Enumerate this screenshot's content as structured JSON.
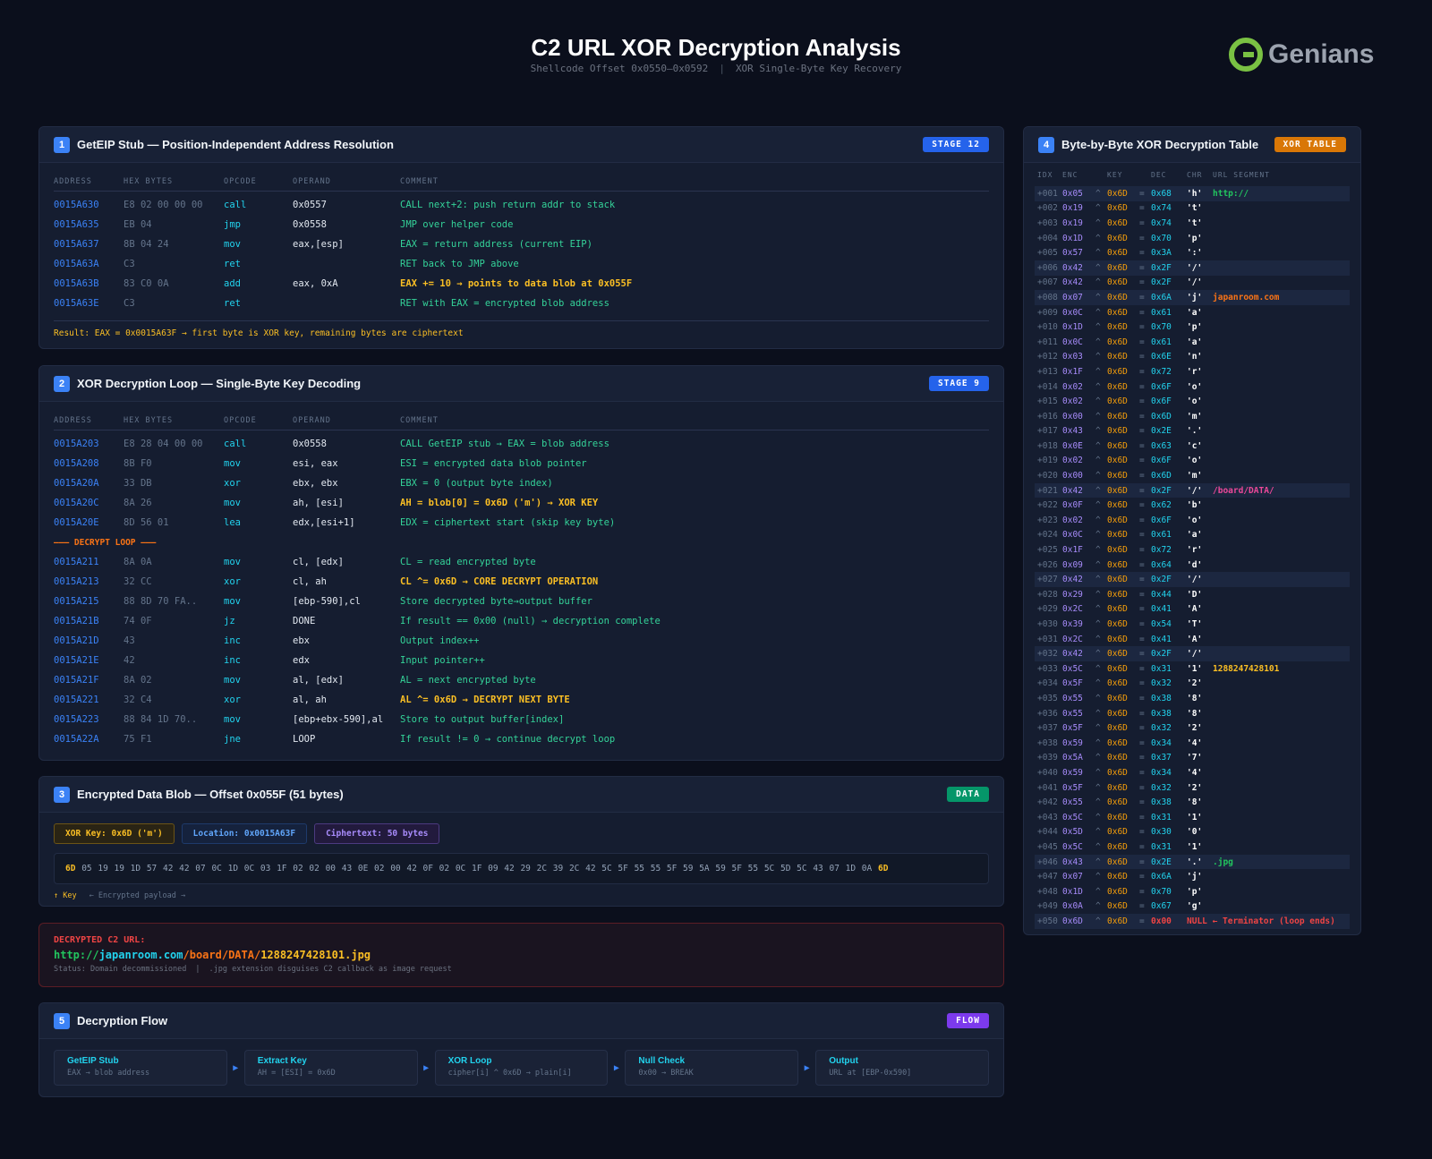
{
  "header": {
    "title": "C2 URL XOR Decryption Analysis",
    "subtitle_left": "Shellcode Offset 0x0550–0x0592",
    "subtitle_right": "XOR Single-Byte Key Recovery",
    "logo_text": "Genians"
  },
  "columns": {
    "address": "ADDRESS",
    "hex": "HEX BYTES",
    "opcode": "OPCODE",
    "operand": "OPERAND",
    "comment": "COMMENT"
  },
  "stage1": {
    "num": "1",
    "title": "GetEIP Stub — Position-Independent Address Resolution",
    "badge": "STAGE 12",
    "badge_color": "#2563eb",
    "rows": [
      {
        "addr": "0015A630",
        "hex": "E8 02 00 00 00",
        "op": "call",
        "operand": "0x0557",
        "comment": "CALL next+2: push return addr to stack"
      },
      {
        "addr": "0015A635",
        "hex": "EB 04",
        "op": "jmp",
        "operand": "0x0558",
        "comment": "JMP over helper code"
      },
      {
        "addr": "0015A637",
        "hex": "8B 04 24",
        "op": "mov",
        "operand": "eax,[esp]",
        "comment": "EAX = return address (current EIP)"
      },
      {
        "addr": "0015A63A",
        "hex": "C3",
        "op": "ret",
        "operand": "",
        "comment": "RET back to JMP above"
      },
      {
        "addr": "0015A63B",
        "hex": "83 C0 0A",
        "op": "add",
        "operand": "eax, 0xA",
        "comment": "EAX += 10 → points to data blob at 0x055F",
        "hl": true
      },
      {
        "addr": "0015A63E",
        "hex": "C3",
        "op": "ret",
        "operand": "",
        "comment": "RET with EAX = encrypted blob address"
      }
    ],
    "result": "Result: EAX = 0x0015A63F → first byte is XOR key, remaining bytes are ciphertext"
  },
  "stage2": {
    "num": "2",
    "title": "XOR Decryption Loop — Single-Byte Key Decoding",
    "badge": "STAGE 9",
    "badge_color": "#2563eb",
    "loop_label": "——— DECRYPT LOOP ———",
    "rows_pre": [
      {
        "addr": "0015A203",
        "hex": "E8 28 04 00 00",
        "op": "call",
        "operand": "0x0558",
        "comment": "CALL GetEIP stub → EAX = blob address"
      },
      {
        "addr": "0015A208",
        "hex": "8B F0",
        "op": "mov",
        "operand": "esi, eax",
        "comment": "ESI = encrypted data blob pointer"
      },
      {
        "addr": "0015A20A",
        "hex": "33 DB",
        "op": "xor",
        "operand": "ebx, ebx",
        "comment": "EBX = 0 (output byte index)"
      },
      {
        "addr": "0015A20C",
        "hex": "8A 26",
        "op": "mov",
        "operand": "ah, [esi]",
        "comment": "AH = blob[0] = 0x6D ('m') → XOR KEY",
        "hl": true
      },
      {
        "addr": "0015A20E",
        "hex": "8D 56 01",
        "op": "lea",
        "operand": "edx,[esi+1]",
        "comment": "EDX = ciphertext start (skip key byte)"
      }
    ],
    "rows_loop": [
      {
        "addr": "0015A211",
        "hex": "8A 0A",
        "op": "mov",
        "operand": "cl, [edx]",
        "comment": "CL = read encrypted byte"
      },
      {
        "addr": "0015A213",
        "hex": "32 CC",
        "op": "xor",
        "operand": "cl, ah",
        "comment": "CL ^= 0x6D → CORE DECRYPT OPERATION",
        "hl": true
      },
      {
        "addr": "0015A215",
        "hex": "88 8D 70 FA..",
        "op": "mov",
        "operand": "[ebp-590],cl",
        "comment": "Store decrypted byte→output buffer"
      },
      {
        "addr": "0015A21B",
        "hex": "74 0F",
        "op": "jz",
        "operand": "DONE",
        "comment": "If result == 0x00 (null) → decryption complete"
      },
      {
        "addr": "0015A21D",
        "hex": "43",
        "op": "inc",
        "operand": "ebx",
        "comment": "Output index++"
      },
      {
        "addr": "0015A21E",
        "hex": "42",
        "op": "inc",
        "operand": "edx",
        "comment": "Input pointer++"
      },
      {
        "addr": "0015A21F",
        "hex": "8A 02",
        "op": "mov",
        "operand": "al, [edx]",
        "comment": "AL = next encrypted byte"
      },
      {
        "addr": "0015A221",
        "hex": "32 C4",
        "op": "xor",
        "operand": "al, ah",
        "comment": "AL ^= 0x6D → DECRYPT NEXT BYTE",
        "hl": true
      },
      {
        "addr": "0015A223",
        "hex": "88 84 1D 70..",
        "op": "mov",
        "operand": "[ebp+ebx-590],al",
        "comment": "Store to output buffer[index]"
      },
      {
        "addr": "0015A22A",
        "hex": "75 F1",
        "op": "jne",
        "operand": "LOOP",
        "comment": "If result != 0 → continue decrypt loop"
      }
    ]
  },
  "stage3": {
    "num": "3",
    "title": "Encrypted Data Blob — Offset 0x055F (51 bytes)",
    "badge": "DATA",
    "badge_color": "#059669",
    "chips": [
      {
        "label": "XOR Key: 0x6D ('m')",
        "color": "#fbbf24"
      },
      {
        "label": "Location: 0x0015A63F",
        "color": "#60a5fa"
      },
      {
        "label": "Ciphertext: 50 bytes",
        "color": "#a78bfa"
      }
    ],
    "key_byte": "6D",
    "payload": "05 19 19 1D 57 42 42 07 0C 1D 0C 03 1F 02 02 00 43 0E 02 00 42 0F 02 0C 1F 09 42 29 2C 39 2C 42 5C 5F 55 55 5F 59 5A 59 5F 55 5C 5D 5C 43 07 1D 0A",
    "end_byte": "6D",
    "note_key": "↑ Key",
    "note_payload": "← Encrypted payload →"
  },
  "decrypted": {
    "label": "DECRYPTED C2 URL:",
    "parts": [
      {
        "text": "http://",
        "color": "#22c55e"
      },
      {
        "text": "japanroom.com",
        "color": "#22d3ee"
      },
      {
        "text": "/board/DATA/",
        "color": "#f97316"
      },
      {
        "text": "1288247428101",
        "color": "#fbbf24"
      },
      {
        "text": ".jpg",
        "color": "#fbbf24"
      }
    ],
    "status": "Status: Domain decommissioned",
    "note": ".jpg extension disguises C2 callback as image request"
  },
  "stage5": {
    "num": "5",
    "title": "Decryption Flow",
    "badge": "FLOW",
    "badge_color": "#7c3aed",
    "steps": [
      {
        "title": "GetEIP Stub",
        "desc": "EAX → blob address"
      },
      {
        "title": "Extract Key",
        "desc": "AH = [ESI] = 0x6D"
      },
      {
        "title": "XOR Loop",
        "desc": "cipher[i] ^ 0x6D → plain[i]"
      },
      {
        "title": "Null Check",
        "desc": "0x00 → BREAK"
      },
      {
        "title": "Output",
        "desc": "URL at [EBP-0x590]"
      }
    ]
  },
  "stage4": {
    "num": "4",
    "title": "Byte-by-Byte XOR Decryption Table",
    "badge": "XOR TABLE",
    "badge_color": "#d97706",
    "headers": [
      "IDX",
      "ENC",
      "KEY",
      "DEC",
      "CHR",
      "URL SEGMENT"
    ],
    "key": "0x6D",
    "segment_colors": {
      "http://": "#22c55e",
      "japanroom.com": "#f97316",
      "/board/DATA/": "#ec4899",
      "1288247428101": "#fbbf24",
      ".jpg": "#22c55e"
    },
    "rows": [
      [
        "+001",
        "0x05",
        "0x68",
        "'h'",
        "http://",
        1
      ],
      [
        "+002",
        "0x19",
        "0x74",
        "'t'",
        "",
        0
      ],
      [
        "+003",
        "0x19",
        "0x74",
        "'t'",
        "",
        0
      ],
      [
        "+004",
        "0x1D",
        "0x70",
        "'p'",
        "",
        0
      ],
      [
        "+005",
        "0x57",
        "0x3A",
        "':'",
        "",
        0
      ],
      [
        "+006",
        "0x42",
        "0x2F",
        "'/'",
        "",
        1
      ],
      [
        "+007",
        "0x42",
        "0x2F",
        "'/'",
        "",
        0
      ],
      [
        "+008",
        "0x07",
        "0x6A",
        "'j'",
        "japanroom.com",
        1
      ],
      [
        "+009",
        "0x0C",
        "0x61",
        "'a'",
        "",
        0
      ],
      [
        "+010",
        "0x1D",
        "0x70",
        "'p'",
        "",
        0
      ],
      [
        "+011",
        "0x0C",
        "0x61",
        "'a'",
        "",
        0
      ],
      [
        "+012",
        "0x03",
        "0x6E",
        "'n'",
        "",
        0
      ],
      [
        "+013",
        "0x1F",
        "0x72",
        "'r'",
        "",
        0
      ],
      [
        "+014",
        "0x02",
        "0x6F",
        "'o'",
        "",
        0
      ],
      [
        "+015",
        "0x02",
        "0x6F",
        "'o'",
        "",
        0
      ],
      [
        "+016",
        "0x00",
        "0x6D",
        "'m'",
        "",
        0
      ],
      [
        "+017",
        "0x43",
        "0x2E",
        "'.'",
        "",
        0
      ],
      [
        "+018",
        "0x0E",
        "0x63",
        "'c'",
        "",
        0
      ],
      [
        "+019",
        "0x02",
        "0x6F",
        "'o'",
        "",
        0
      ],
      [
        "+020",
        "0x00",
        "0x6D",
        "'m'",
        "",
        0
      ],
      [
        "+021",
        "0x42",
        "0x2F",
        "'/'",
        "/board/DATA/",
        1
      ],
      [
        "+022",
        "0x0F",
        "0x62",
        "'b'",
        "",
        0
      ],
      [
        "+023",
        "0x02",
        "0x6F",
        "'o'",
        "",
        0
      ],
      [
        "+024",
        "0x0C",
        "0x61",
        "'a'",
        "",
        0
      ],
      [
        "+025",
        "0x1F",
        "0x72",
        "'r'",
        "",
        0
      ],
      [
        "+026",
        "0x09",
        "0x64",
        "'d'",
        "",
        0
      ],
      [
        "+027",
        "0x42",
        "0x2F",
        "'/'",
        "",
        1
      ],
      [
        "+028",
        "0x29",
        "0x44",
        "'D'",
        "",
        0
      ],
      [
        "+029",
        "0x2C",
        "0x41",
        "'A'",
        "",
        0
      ],
      [
        "+030",
        "0x39",
        "0x54",
        "'T'",
        "",
        0
      ],
      [
        "+031",
        "0x2C",
        "0x41",
        "'A'",
        "",
        0
      ],
      [
        "+032",
        "0x42",
        "0x2F",
        "'/'",
        "",
        1
      ],
      [
        "+033",
        "0x5C",
        "0x31",
        "'1'",
        "1288247428101",
        0
      ],
      [
        "+034",
        "0x5F",
        "0x32",
        "'2'",
        "",
        0
      ],
      [
        "+035",
        "0x55",
        "0x38",
        "'8'",
        "",
        0
      ],
      [
        "+036",
        "0x55",
        "0x38",
        "'8'",
        "",
        0
      ],
      [
        "+037",
        "0x5F",
        "0x32",
        "'2'",
        "",
        0
      ],
      [
        "+038",
        "0x59",
        "0x34",
        "'4'",
        "",
        0
      ],
      [
        "+039",
        "0x5A",
        "0x37",
        "'7'",
        "",
        0
      ],
      [
        "+040",
        "0x59",
        "0x34",
        "'4'",
        "",
        0
      ],
      [
        "+041",
        "0x5F",
        "0x32",
        "'2'",
        "",
        0
      ],
      [
        "+042",
        "0x55",
        "0x38",
        "'8'",
        "",
        0
      ],
      [
        "+043",
        "0x5C",
        "0x31",
        "'1'",
        "",
        0
      ],
      [
        "+044",
        "0x5D",
        "0x30",
        "'0'",
        "",
        0
      ],
      [
        "+045",
        "0x5C",
        "0x31",
        "'1'",
        "",
        0
      ],
      [
        "+046",
        "0x43",
        "0x2E",
        "'.'",
        ".jpg",
        1
      ],
      [
        "+047",
        "0x07",
        "0x6A",
        "'j'",
        "",
        0
      ],
      [
        "+048",
        "0x1D",
        "0x70",
        "'p'",
        "",
        0
      ],
      [
        "+049",
        "0x0A",
        "0x67",
        "'g'",
        "",
        0
      ]
    ],
    "null_row": {
      "idx": "+050",
      "enc": "0x6D",
      "dec": "0x00",
      "text": "NULL ← Terminator (loop ends)"
    }
  }
}
